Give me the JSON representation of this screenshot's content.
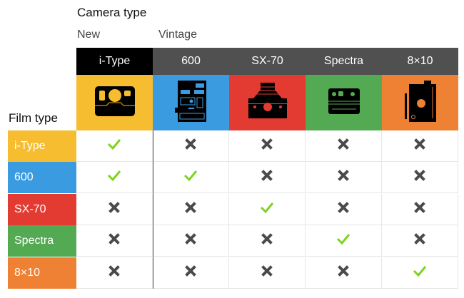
{
  "title": "Camera type",
  "groups": {
    "new": "New",
    "vintage": "Vintage"
  },
  "film_title": "Film type",
  "cameras": [
    {
      "label": "i-Type",
      "color": "#f7bd31",
      "header_color": "#000000",
      "icon": "itype-camera-icon"
    },
    {
      "label": "600",
      "color": "#3b9be0",
      "header_color": "#505050",
      "icon": "600-camera-icon"
    },
    {
      "label": "SX-70",
      "color": "#e33b32",
      "header_color": "#505050",
      "icon": "sx70-camera-icon"
    },
    {
      "label": "Spectra",
      "color": "#54a953",
      "header_color": "#505050",
      "icon": "spectra-camera-icon"
    },
    {
      "label": "8×10",
      "color": "#ee8133",
      "header_color": "#505050",
      "icon": "8x10-camera-icon"
    }
  ],
  "films": [
    {
      "label": "i-Type",
      "color": "#f7bd31",
      "compat": [
        true,
        false,
        false,
        false,
        false
      ]
    },
    {
      "label": "600",
      "color": "#3b9be0",
      "compat": [
        true,
        true,
        false,
        false,
        false
      ]
    },
    {
      "label": "SX-70",
      "color": "#e33b32",
      "compat": [
        false,
        false,
        true,
        false,
        false
      ]
    },
    {
      "label": "Spectra",
      "color": "#54a953",
      "compat": [
        false,
        false,
        false,
        true,
        false
      ]
    },
    {
      "label": "8×10",
      "color": "#ee8133",
      "compat": [
        false,
        false,
        false,
        false,
        true
      ]
    }
  ],
  "check_color": "#7ed321",
  "cross_color": "#4a4a4a"
}
